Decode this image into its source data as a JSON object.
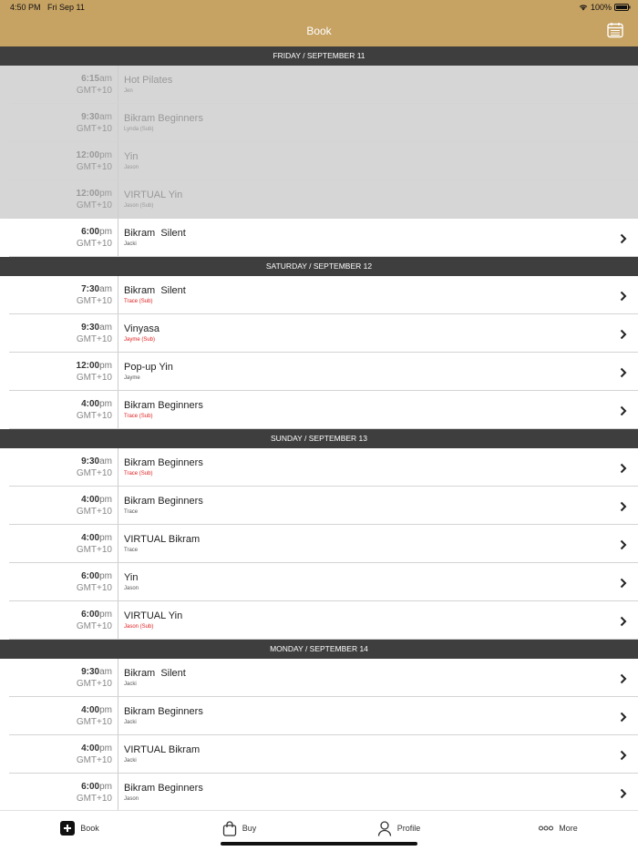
{
  "status": {
    "time": "4:50 PM",
    "date": "Fri Sep 11",
    "battery": "100%"
  },
  "header": {
    "title": "Book"
  },
  "sections": [
    {
      "title": "FRIDAY / SEPTEMBER 11",
      "rows": [
        {
          "time": "6:15",
          "period": "am",
          "tz": "GMT+10",
          "name": "Hot Pilates",
          "instructor": "Jen",
          "past": true
        },
        {
          "time": "9:30",
          "period": "am",
          "tz": "GMT+10",
          "name": "Bikram Beginners",
          "instructor": "Lynda (Sub)",
          "past": true
        },
        {
          "time": "12:00",
          "period": "pm",
          "tz": "GMT+10",
          "name": "Yin",
          "instructor": "Jason",
          "past": true
        },
        {
          "time": "12:00",
          "period": "pm",
          "tz": "GMT+10",
          "name": "VIRTUAL Yin",
          "instructor": "Jason (Sub)",
          "past": true
        },
        {
          "time": "6:00",
          "period": "pm",
          "tz": "GMT+10",
          "name": "Bikram  Silent",
          "instructor": "Jacki"
        }
      ]
    },
    {
      "title": "SATURDAY / SEPTEMBER 12",
      "rows": [
        {
          "time": "7:30",
          "period": "am",
          "tz": "GMT+10",
          "name": "Bikram  Silent",
          "instructor": "Trace (Sub)"
        },
        {
          "time": "9:30",
          "period": "am",
          "tz": "GMT+10",
          "name": "Vinyasa",
          "instructor": "Jayme (Sub)"
        },
        {
          "time": "12:00",
          "period": "pm",
          "tz": "GMT+10",
          "name": "Pop-up Yin",
          "instructor": "Jayme"
        },
        {
          "time": "4:00",
          "period": "pm",
          "tz": "GMT+10",
          "name": "Bikram Beginners",
          "instructor": "Trace (Sub)"
        }
      ]
    },
    {
      "title": "SUNDAY / SEPTEMBER 13",
      "rows": [
        {
          "time": "9:30",
          "period": "am",
          "tz": "GMT+10",
          "name": "Bikram Beginners",
          "instructor": "Trace (Sub)"
        },
        {
          "time": "4:00",
          "period": "pm",
          "tz": "GMT+10",
          "name": "Bikram Beginners",
          "instructor": "Trace"
        },
        {
          "time": "4:00",
          "period": "pm",
          "tz": "GMT+10",
          "name": "VIRTUAL Bikram",
          "instructor": "Trace"
        },
        {
          "time": "6:00",
          "period": "pm",
          "tz": "GMT+10",
          "name": "Yin",
          "instructor": "Jason"
        },
        {
          "time": "6:00",
          "period": "pm",
          "tz": "GMT+10",
          "name": "VIRTUAL Yin",
          "instructor": "Jason (Sub)"
        }
      ]
    },
    {
      "title": "MONDAY / SEPTEMBER 14",
      "rows": [
        {
          "time": "9:30",
          "period": "am",
          "tz": "GMT+10",
          "name": "Bikram  Silent",
          "instructor": "Jacki"
        },
        {
          "time": "4:00",
          "period": "pm",
          "tz": "GMT+10",
          "name": "Bikram Beginners",
          "instructor": "Jacki"
        },
        {
          "time": "4:00",
          "period": "pm",
          "tz": "GMT+10",
          "name": "VIRTUAL Bikram",
          "instructor": "Jacki"
        },
        {
          "time": "6:00",
          "period": "pm",
          "tz": "GMT+10",
          "name": "Bikram Beginners",
          "instructor": "Jason"
        }
      ]
    }
  ],
  "tabs": [
    {
      "label": "Book"
    },
    {
      "label": "Buy"
    },
    {
      "label": "Profile"
    },
    {
      "label": "More"
    }
  ]
}
